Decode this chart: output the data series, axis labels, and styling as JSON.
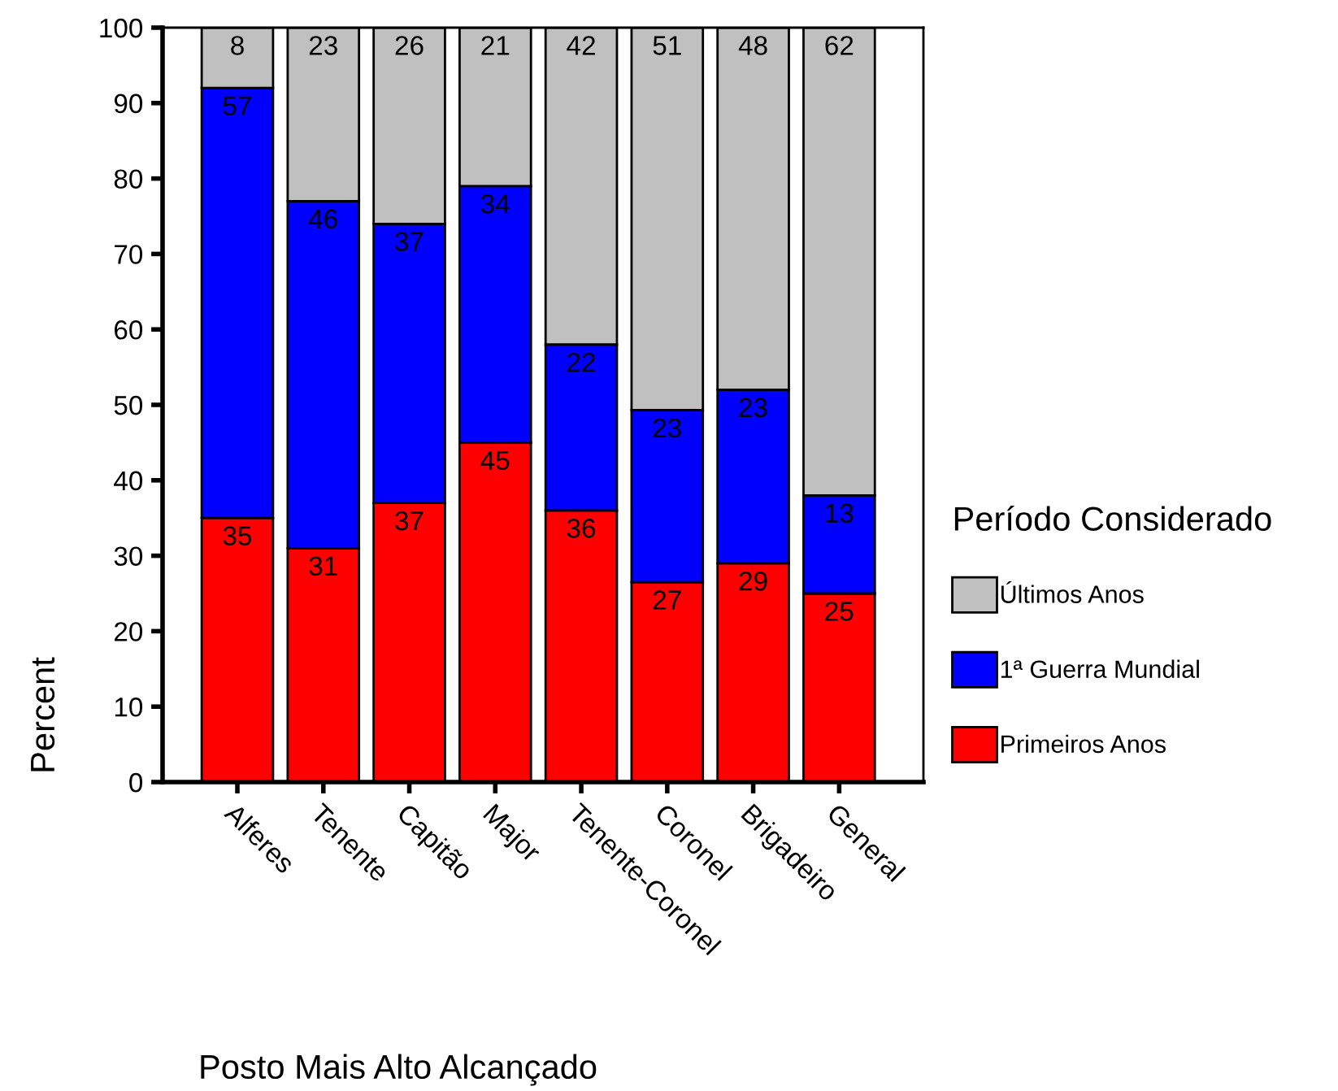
{
  "chart_data": {
    "type": "bar",
    "stacked": true,
    "xlabel": "Posto Mais Alto Alcançado",
    "ylabel": "Percent",
    "legend_title": "Período Considerado",
    "categories": [
      "Alferes",
      "Tenente",
      "Capitão",
      "Major",
      "Tenente-Coronel",
      "Coronel",
      "Brigadeiro",
      "General"
    ],
    "series": [
      {
        "name": "Primeiros Anos",
        "color": "#ff0000",
        "values": [
          35,
          31,
          37,
          45,
          36,
          26.5,
          29,
          25
        ],
        "value_labels": [
          "35",
          "31",
          "37",
          "45",
          "36",
          "27",
          "29",
          "25"
        ]
      },
      {
        "name": "1ª Guerra Mundial",
        "color": "#0000ff",
        "values": [
          57,
          46,
          37,
          34,
          22,
          22.8,
          23,
          13
        ],
        "value_labels": [
          "57",
          "46",
          "37",
          "34",
          "22",
          "23",
          "23",
          "13"
        ]
      },
      {
        "name": "Últimos Anos",
        "color": "#c0c0c0",
        "values": [
          8,
          23,
          26,
          21,
          42,
          50.7,
          48,
          62
        ],
        "value_labels": [
          "8",
          "23",
          "26",
          "21",
          "42",
          "51",
          "48",
          "62"
        ]
      }
    ],
    "ylim": [
      0,
      100
    ],
    "yticks": [
      0,
      10,
      20,
      30,
      40,
      50,
      60,
      70,
      80,
      90,
      100
    ],
    "grid": false,
    "legend": "right"
  }
}
